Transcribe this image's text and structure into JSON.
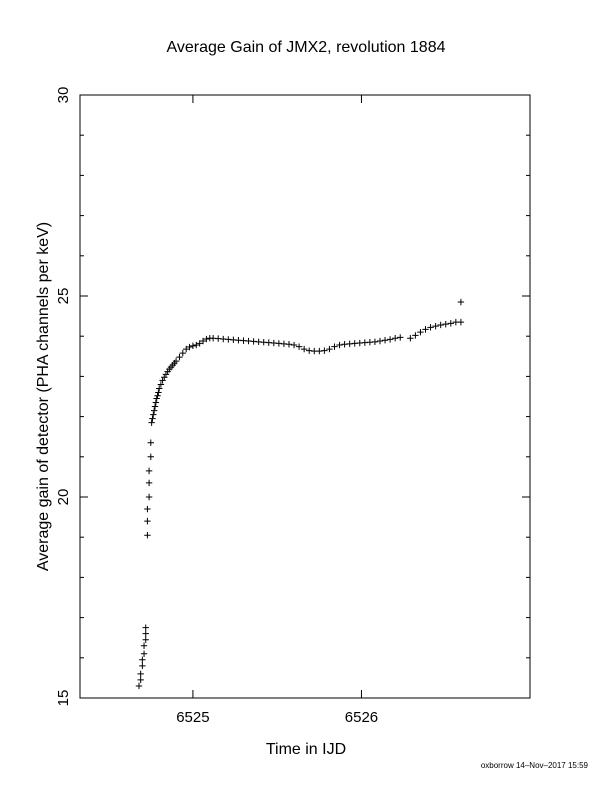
{
  "footer": "oxborrow 14–Nov–2017 15:59",
  "chart_data": {
    "type": "scatter",
    "title": "Average Gain of JMX2, revolution 1884",
    "xlabel": "Time in IJD",
    "ylabel": "Average gain of detector (PHA channels per keV)",
    "xlim": [
      6524.33,
      6527.0
    ],
    "ylim": [
      15,
      30
    ],
    "xticks": [
      6525,
      6526
    ],
    "yticks": [
      15,
      20,
      25,
      30
    ],
    "grid": false,
    "marker": "+",
    "series": [
      {
        "x": [
          6524.68,
          6524.69,
          6524.69,
          6524.7,
          6524.7,
          6524.71,
          6524.71,
          6524.72,
          6524.72,
          6524.72,
          6524.73,
          6524.73,
          6524.73,
          6524.74,
          6524.74,
          6524.74,
          6524.75,
          6524.75,
          6524.755,
          6524.76,
          6524.765,
          6524.77,
          6524.775,
          6524.78,
          6524.785,
          6524.79,
          6524.795,
          6524.8,
          6524.81,
          6524.82,
          6524.83,
          6524.84,
          6524.85,
          6524.86,
          6524.87,
          6524.88,
          6524.89,
          6524.9,
          6524.92,
          6524.94,
          6524.96,
          6524.98,
          6525.0,
          6525.02,
          6525.04,
          6525.06,
          6525.08,
          6525.1,
          6525.12,
          6525.15,
          6525.18,
          6525.21,
          6525.24,
          6525.27,
          6525.3,
          6525.33,
          6525.36,
          6525.39,
          6525.42,
          6525.45,
          6525.48,
          6525.51,
          6525.54,
          6525.57,
          6525.6,
          6525.63,
          6525.66,
          6525.69,
          6525.72,
          6525.75,
          6525.78,
          6525.81,
          6525.84,
          6525.87,
          6525.9,
          6525.93,
          6525.96,
          6525.99,
          6526.02,
          6526.05,
          6526.08,
          6526.11,
          6526.14,
          6526.17,
          6526.2,
          6526.23,
          6526.29,
          6526.32,
          6526.35,
          6526.38,
          6526.41,
          6526.44,
          6526.47,
          6526.5,
          6526.53,
          6526.56,
          6526.59,
          6526.59
        ],
        "y": [
          15.3,
          15.45,
          15.6,
          15.8,
          15.95,
          16.1,
          16.3,
          16.45,
          16.6,
          16.75,
          19.05,
          19.4,
          19.7,
          20.0,
          20.35,
          20.65,
          21.0,
          21.35,
          21.85,
          21.95,
          22.05,
          22.15,
          22.25,
          22.35,
          22.45,
          22.52,
          22.6,
          22.7,
          22.8,
          22.9,
          22.98,
          23.05,
          23.12,
          23.18,
          23.23,
          23.28,
          23.33,
          23.38,
          23.48,
          23.58,
          23.68,
          23.73,
          23.76,
          23.78,
          23.82,
          23.88,
          23.93,
          23.95,
          23.95,
          23.94,
          23.93,
          23.92,
          23.91,
          23.9,
          23.89,
          23.88,
          23.87,
          23.86,
          23.85,
          23.84,
          23.83,
          23.82,
          23.81,
          23.8,
          23.78,
          23.74,
          23.68,
          23.64,
          23.63,
          23.63,
          23.64,
          23.68,
          23.74,
          23.78,
          23.8,
          23.81,
          23.82,
          23.83,
          23.84,
          23.85,
          23.86,
          23.88,
          23.9,
          23.92,
          23.95,
          23.97,
          23.95,
          24.02,
          24.1,
          24.17,
          24.22,
          24.25,
          24.28,
          24.3,
          24.32,
          24.35,
          24.35,
          24.85
        ]
      }
    ]
  }
}
